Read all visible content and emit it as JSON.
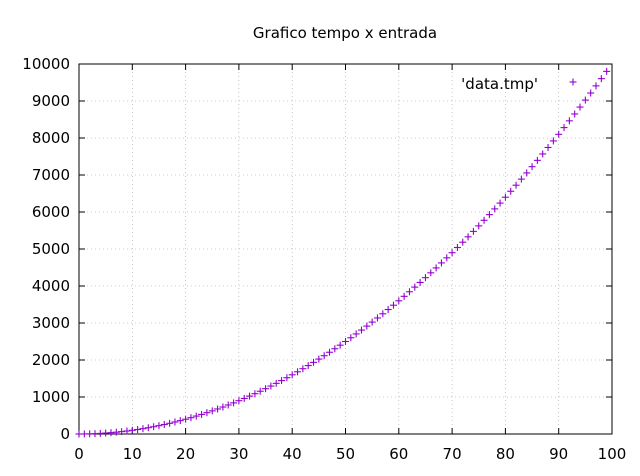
{
  "chart_data": {
    "type": "scatter",
    "title": "Grafico tempo x entrada",
    "xlabel": "",
    "ylabel": "",
    "xlim": [
      0,
      100
    ],
    "ylim": [
      0,
      10000
    ],
    "x_ticks": [
      0,
      10,
      20,
      30,
      40,
      50,
      60,
      70,
      80,
      90,
      100
    ],
    "y_ticks": [
      0,
      1000,
      2000,
      3000,
      4000,
      5000,
      6000,
      7000,
      8000,
      9000,
      10000
    ],
    "grid": true,
    "legend_position": "top-right",
    "series": [
      {
        "name": "'data.tmp'",
        "color": "#9400d3",
        "marker": "plus",
        "x": [
          0,
          1,
          2,
          3,
          4,
          5,
          6,
          7,
          8,
          9,
          10,
          11,
          12,
          13,
          14,
          15,
          16,
          17,
          18,
          19,
          20,
          21,
          22,
          23,
          24,
          25,
          26,
          27,
          28,
          29,
          30,
          31,
          32,
          33,
          34,
          35,
          36,
          37,
          38,
          39,
          40,
          41,
          42,
          43,
          44,
          45,
          46,
          47,
          48,
          49,
          50,
          51,
          52,
          53,
          54,
          55,
          56,
          57,
          58,
          59,
          60,
          61,
          62,
          63,
          64,
          65,
          66,
          67,
          68,
          69,
          70,
          71,
          72,
          73,
          74,
          75,
          76,
          77,
          78,
          79,
          80,
          81,
          82,
          83,
          84,
          85,
          86,
          87,
          88,
          89,
          90,
          91,
          92,
          93,
          94,
          95,
          96,
          97,
          98,
          99
        ],
        "y": [
          0,
          1,
          4,
          9,
          16,
          25,
          36,
          49,
          64,
          81,
          100,
          121,
          144,
          169,
          196,
          225,
          256,
          289,
          324,
          361,
          400,
          441,
          484,
          529,
          576,
          625,
          676,
          729,
          784,
          841,
          900,
          961,
          1024,
          1089,
          1156,
          1225,
          1296,
          1369,
          1444,
          1521,
          1600,
          1681,
          1764,
          1849,
          1936,
          2025,
          2116,
          2209,
          2304,
          2401,
          2500,
          2601,
          2704,
          2809,
          2916,
          3025,
          3136,
          3249,
          3364,
          3481,
          3600,
          3721,
          3844,
          3969,
          4096,
          4225,
          4356,
          4489,
          4624,
          4761,
          4900,
          5041,
          5184,
          5329,
          5476,
          5625,
          5776,
          5929,
          6084,
          6241,
          6400,
          6561,
          6724,
          6889,
          7056,
          7225,
          7396,
          7569,
          7744,
          7921,
          8100,
          8281,
          8464,
          8649,
          8836,
          9025,
          9216,
          9409,
          9604,
          9801
        ]
      }
    ]
  }
}
